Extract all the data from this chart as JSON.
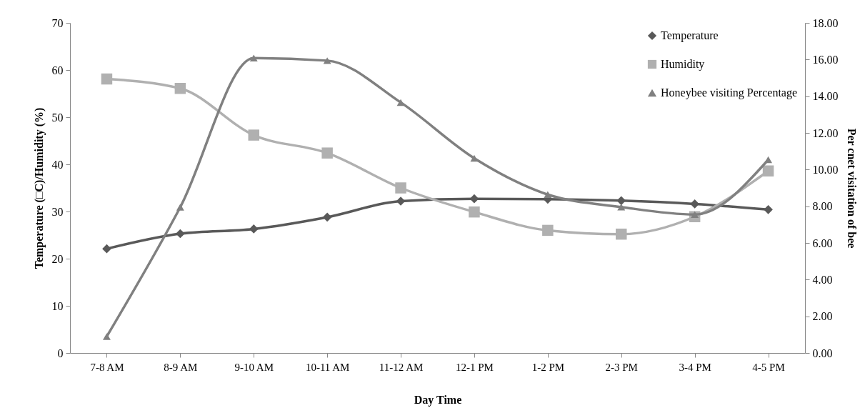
{
  "chart_data": {
    "type": "line",
    "xlabel": "Day Time",
    "ylabel": "Temperature (□C)/Humidity  (%)",
    "y2label": "Per cnet visitation of bee",
    "categories": [
      "7-8 AM",
      "8-9 AM",
      "9-10 AM",
      "10-11 AM",
      "11-12 AM",
      "12-1 PM",
      "1-2 PM",
      "2-3 PM",
      "3-4 PM",
      "4-5 PM"
    ],
    "series": [
      {
        "name": "Temperature",
        "color": "#595959",
        "marker": "diamond",
        "values": [
          22.1,
          25.3,
          26.3,
          28.8,
          32.2,
          32.7,
          32.6,
          32.3,
          31.6,
          30.4
        ]
      },
      {
        "name": "Humidity",
        "color": "#b0b0b0",
        "marker": "square",
        "values": [
          58.1,
          56.1,
          46.2,
          42.4,
          35.0,
          29.9,
          26.0,
          25.2,
          28.9,
          38.6
        ]
      },
      {
        "name": "Honeybee visiting Percentage",
        "color": "#808080",
        "marker": "triangle",
        "axis": "y2",
        "values": [
          0.9,
          7.95,
          16.08,
          15.94,
          13.66,
          10.62,
          8.64,
          7.96,
          7.55,
          10.54
        ]
      }
    ],
    "ylim": [
      0,
      70
    ],
    "yticks": [
      0,
      10,
      20,
      30,
      40,
      50,
      60,
      70
    ],
    "y2lim": [
      0,
      18
    ],
    "y2ticks": [
      {
        "value": 0,
        "label": "0.00"
      },
      {
        "value": 2,
        "label": "2.00"
      },
      {
        "value": 4,
        "label": "4.00"
      },
      {
        "value": 6,
        "label": "6.00"
      },
      {
        "value": 8,
        "label": "8.00"
      },
      {
        "value": 10,
        "label": "10.00"
      },
      {
        "value": 12,
        "label": "12.00"
      },
      {
        "value": 14,
        "label": "14.00"
      },
      {
        "value": 16,
        "label": "16.00"
      },
      {
        "value": 18,
        "label": "18.00"
      }
    ],
    "legend": "top right",
    "grid": false,
    "line_style": "solid"
  }
}
